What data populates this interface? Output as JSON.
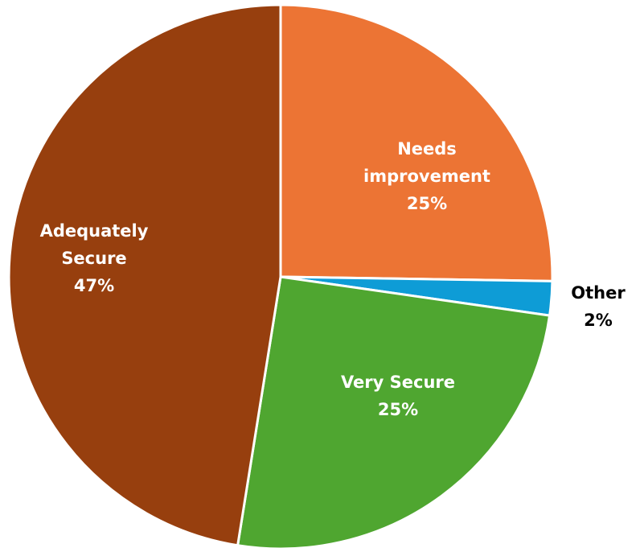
{
  "chart_data": {
    "type": "pie",
    "title": "",
    "slices": [
      {
        "label_lines": [
          "Needs",
          "improvement"
        ],
        "value": 25,
        "value_label": "25%",
        "color": "#EC7434",
        "label_color": "#FFFFFF"
      },
      {
        "label_lines": [
          "Other"
        ],
        "value": 2,
        "value_label": "2%",
        "color": "#0E9CD6",
        "label_color": "#000000"
      },
      {
        "label_lines": [
          "Very Secure"
        ],
        "value": 25,
        "value_label": "25%",
        "color": "#4FA630",
        "label_color": "#FFFFFF"
      },
      {
        "label_lines": [
          "Adequately",
          "Secure"
        ],
        "value": 47,
        "value_label": "47%",
        "color": "#973F0E",
        "label_color": "#FFFFFF"
      }
    ],
    "start_angle_deg": 0,
    "direction": "clockwise",
    "legend": "none"
  }
}
